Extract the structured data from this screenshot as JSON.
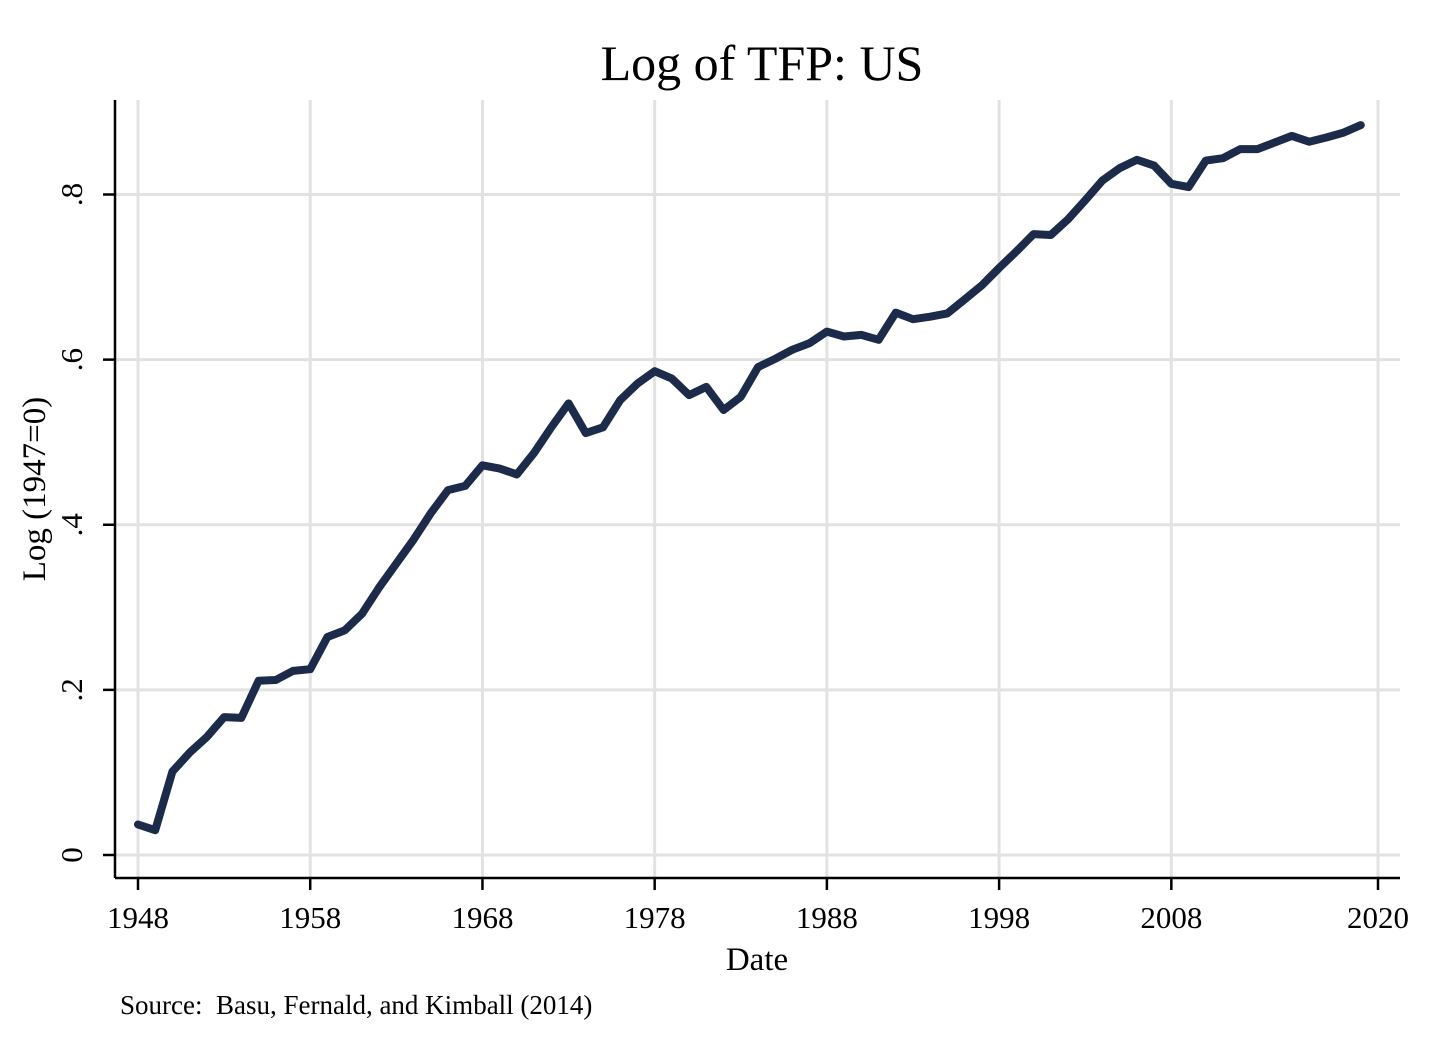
{
  "chart_data": {
    "type": "line",
    "title": "Log of TFP: US",
    "xlabel": "Date",
    "ylabel": "Log (1947=0)",
    "note": "Source:  Basu, Fernald, and Kimball (2014)",
    "xlim": [
      1948,
      2020
    ],
    "ylim": [
      0,
      0.9
    ],
    "x_ticks": [
      {
        "value": 1948,
        "label": "1948"
      },
      {
        "value": 1958,
        "label": "1958"
      },
      {
        "value": 1968,
        "label": "1968"
      },
      {
        "value": 1978,
        "label": "1978"
      },
      {
        "value": 1988,
        "label": "1988"
      },
      {
        "value": 1998,
        "label": "1998"
      },
      {
        "value": 2008,
        "label": "2008"
      },
      {
        "value": 2020,
        "label": "2020"
      }
    ],
    "y_ticks": [
      {
        "value": 0,
        "label": "0"
      },
      {
        "value": 0.2,
        "label": ".2"
      },
      {
        "value": 0.4,
        "label": ".4"
      },
      {
        "value": 0.6,
        "label": ".6"
      },
      {
        "value": 0.8,
        "label": ".8"
      }
    ],
    "grid": true,
    "line_color": "#1c2b4a",
    "series": [
      {
        "name": "Log of TFP",
        "x": [
          1948,
          1949,
          1950,
          1951,
          1952,
          1953,
          1954,
          1955,
          1956,
          1957,
          1958,
          1959,
          1960,
          1961,
          1962,
          1963,
          1964,
          1965,
          1966,
          1967,
          1968,
          1969,
          1970,
          1971,
          1972,
          1973,
          1974,
          1975,
          1976,
          1977,
          1978,
          1979,
          1980,
          1981,
          1982,
          1983,
          1984,
          1985,
          1986,
          1987,
          1988,
          1989,
          1990,
          1991,
          1992,
          1993,
          1994,
          1995,
          1996,
          1997,
          1998,
          1999,
          2000,
          2001,
          2002,
          2003,
          2004,
          2005,
          2006,
          2007,
          2008,
          2009,
          2010,
          2011,
          2012,
          2013,
          2014,
          2015,
          2016,
          2017,
          2018,
          2019
        ],
        "values": [
          0.037,
          0.03,
          0.101,
          0.124,
          0.143,
          0.167,
          0.166,
          0.211,
          0.212,
          0.223,
          0.225,
          0.264,
          0.272,
          0.292,
          0.324,
          0.353,
          0.382,
          0.414,
          0.442,
          0.447,
          0.472,
          0.468,
          0.461,
          0.487,
          0.518,
          0.547,
          0.511,
          0.518,
          0.551,
          0.571,
          0.586,
          0.577,
          0.557,
          0.567,
          0.539,
          0.555,
          0.591,
          0.601,
          0.612,
          0.62,
          0.634,
          0.628,
          0.63,
          0.624,
          0.657,
          0.649,
          0.652,
          0.656,
          0.673,
          0.69,
          0.711,
          0.731,
          0.752,
          0.751,
          0.77,
          0.793,
          0.817,
          0.832,
          0.842,
          0.835,
          0.813,
          0.809,
          0.841,
          0.844,
          0.855,
          0.855,
          0.863,
          0.871,
          0.864,
          0.869,
          0.875,
          0.884
        ]
      }
    ]
  }
}
